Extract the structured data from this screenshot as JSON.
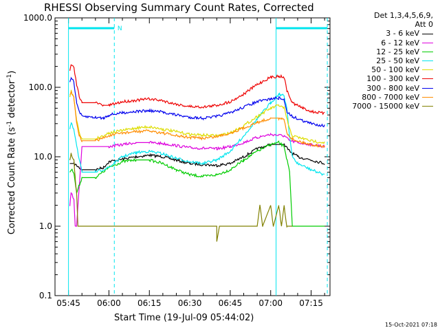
{
  "chart_data": {
    "type": "line",
    "title": "RHESSI Observing Summary Count Rates, Corrected",
    "xlabel": "Start Time (19-Jul-09 05:44:02)",
    "ylabel_parts": {
      "main": "Corrected Count Rate (s",
      "sup": "-1",
      "tail": " detector",
      "sup2": "-1",
      "end": ")"
    },
    "yscale": "log",
    "ylim": [
      0.1,
      1000.0
    ],
    "xlim": [
      "05:40",
      "07:22"
    ],
    "xticks": [
      "05:45",
      "06:00",
      "06:15",
      "06:30",
      "06:45",
      "07:00",
      "07:15"
    ],
    "yticks": [
      "0.1",
      "1.0",
      "10.0",
      "100.0",
      "1000.0"
    ],
    "legend_header": [
      "Det 1,3,4,5,6,9,",
      "Att 0"
    ],
    "legend_placement": "right",
    "markers": {
      "night_label": "N",
      "night_intervals": [
        [
          "05:45",
          "06:02"
        ],
        [
          "07:02",
          "07:21"
        ]
      ],
      "vertical_lines_solid": [
        "05:45",
        "07:02"
      ],
      "vertical_lines_dashed": [
        "06:02",
        "07:21"
      ]
    },
    "series": [
      {
        "name": "3 - 6 keV",
        "color": "#000000",
        "points": [
          [
            "05:45.5",
            8
          ],
          [
            "05:47",
            8
          ],
          [
            "05:50",
            6.5
          ],
          [
            "05:55",
            6.5
          ],
          [
            "05:58",
            7
          ],
          [
            "06:00",
            8.5
          ],
          [
            "06:10",
            10
          ],
          [
            "06:15",
            10.5
          ],
          [
            "06:20",
            10
          ],
          [
            "06:30",
            8
          ],
          [
            "06:40",
            7.5
          ],
          [
            "06:45",
            8
          ],
          [
            "06:50",
            10
          ],
          [
            "06:55",
            13
          ],
          [
            "07:00",
            15
          ],
          [
            "07:05",
            15
          ],
          [
            "07:07",
            12
          ],
          [
            "07:10",
            10
          ],
          [
            "07:15",
            9
          ],
          [
            "07:20",
            8
          ]
        ]
      },
      {
        "name": "6 - 12 keV",
        "color": "#dd00dd",
        "points": [
          [
            "05:45.5",
            2
          ],
          [
            "05:46",
            3
          ],
          [
            "05:47",
            2.5
          ],
          [
            "05:47.5",
            1
          ],
          [
            "05:48",
            1
          ],
          [
            "05:50",
            14
          ],
          [
            "05:55",
            14
          ],
          [
            "06:00",
            14
          ],
          [
            "06:10",
            16
          ],
          [
            "06:15",
            16
          ],
          [
            "06:20",
            15.5
          ],
          [
            "06:30",
            13.5
          ],
          [
            "06:40",
            13
          ],
          [
            "06:45",
            14
          ],
          [
            "06:50",
            16
          ],
          [
            "06:55",
            19
          ],
          [
            "07:00",
            21
          ],
          [
            "07:05",
            20
          ],
          [
            "07:07",
            17
          ],
          [
            "07:10",
            16
          ],
          [
            "07:15",
            15
          ],
          [
            "07:20",
            14
          ]
        ]
      },
      {
        "name": "12 - 25 keV",
        "color": "#00cc00",
        "points": [
          [
            "05:45.5",
            6
          ],
          [
            "05:46",
            6.5
          ],
          [
            "05:47",
            6
          ],
          [
            "05:48",
            3
          ],
          [
            "05:50",
            5
          ],
          [
            "05:55",
            5
          ],
          [
            "06:00",
            7
          ],
          [
            "06:05",
            8.5
          ],
          [
            "06:10",
            9
          ],
          [
            "06:15",
            9
          ],
          [
            "06:20",
            8
          ],
          [
            "06:25",
            6.5
          ],
          [
            "06:30",
            5.5
          ],
          [
            "06:35",
            5.2
          ],
          [
            "06:40",
            5.5
          ],
          [
            "06:45",
            6.5
          ],
          [
            "06:50",
            9
          ],
          [
            "06:55",
            12
          ],
          [
            "07:00",
            15
          ],
          [
            "07:03",
            16
          ],
          [
            "07:05",
            14
          ],
          [
            "07:07",
            6
          ],
          [
            "07:08",
            1
          ],
          [
            "07:20",
            1
          ]
        ]
      },
      {
        "name": "25 - 50 keV",
        "color": "#00e5ee",
        "points": [
          [
            "05:45.5",
            25
          ],
          [
            "05:46",
            30
          ],
          [
            "05:47",
            25
          ],
          [
            "05:48",
            15
          ],
          [
            "05:49",
            9
          ],
          [
            "05:50",
            6
          ],
          [
            "05:55",
            6
          ],
          [
            "06:00",
            7
          ],
          [
            "06:05",
            10
          ],
          [
            "06:10",
            11.5
          ],
          [
            "06:15",
            12
          ],
          [
            "06:20",
            11
          ],
          [
            "06:25",
            9.5
          ],
          [
            "06:30",
            8.5
          ],
          [
            "06:35",
            8
          ],
          [
            "06:40",
            9
          ],
          [
            "06:45",
            12
          ],
          [
            "06:50",
            20
          ],
          [
            "06:55",
            35
          ],
          [
            "07:00",
            60
          ],
          [
            "07:03",
            80
          ],
          [
            "07:05",
            75
          ],
          [
            "07:06",
            50
          ],
          [
            "07:07",
            20
          ],
          [
            "07:08",
            10
          ],
          [
            "07:10",
            8
          ],
          [
            "07:15",
            6.5
          ],
          [
            "07:20",
            5.5
          ]
        ]
      },
      {
        "name": "50 - 100 keV",
        "color": "#dddd00",
        "points": [
          [
            "05:45.5",
            70
          ],
          [
            "05:46",
            90
          ],
          [
            "05:47",
            70
          ],
          [
            "05:48",
            35
          ],
          [
            "05:49",
            22
          ],
          [
            "05:50",
            18
          ],
          [
            "05:55",
            18
          ],
          [
            "06:00",
            22
          ],
          [
            "06:10",
            26
          ],
          [
            "06:15",
            27
          ],
          [
            "06:20",
            25
          ],
          [
            "06:30",
            21
          ],
          [
            "06:40",
            20
          ],
          [
            "06:45",
            22
          ],
          [
            "06:50",
            28
          ],
          [
            "06:55",
            38
          ],
          [
            "07:00",
            50
          ],
          [
            "07:03",
            55
          ],
          [
            "07:05",
            50
          ],
          [
            "07:07",
            25
          ],
          [
            "07:08",
            20
          ],
          [
            "07:15",
            17
          ],
          [
            "07:20",
            16
          ]
        ]
      },
      {
        "name": "100 - 300 keV",
        "color": "#ee0000",
        "points": [
          [
            "05:45.5",
            170
          ],
          [
            "05:46",
            210
          ],
          [
            "05:47",
            190
          ],
          [
            "05:48",
            110
          ],
          [
            "05:49",
            75
          ],
          [
            "05:50",
            60
          ],
          [
            "05:55",
            60
          ],
          [
            "05:58",
            55
          ],
          [
            "06:00",
            55
          ],
          [
            "06:05",
            62
          ],
          [
            "06:10",
            65
          ],
          [
            "06:15",
            68
          ],
          [
            "06:20",
            64
          ],
          [
            "06:25",
            57
          ],
          [
            "06:30",
            53
          ],
          [
            "06:35",
            52
          ],
          [
            "06:40",
            55
          ],
          [
            "06:45",
            62
          ],
          [
            "06:50",
            80
          ],
          [
            "06:55",
            110
          ],
          [
            "07:00",
            140
          ],
          [
            "07:03",
            145
          ],
          [
            "07:05",
            140
          ],
          [
            "07:06",
            90
          ],
          [
            "07:08",
            60
          ],
          [
            "07:12",
            50
          ],
          [
            "07:15",
            45
          ],
          [
            "07:20",
            42
          ]
        ]
      },
      {
        "name": "300 - 800 keV",
        "color": "#0000ee",
        "points": [
          [
            "05:45.5",
            120
          ],
          [
            "05:46",
            140
          ],
          [
            "05:47",
            120
          ],
          [
            "05:48",
            60
          ],
          [
            "05:49",
            45
          ],
          [
            "05:50",
            38
          ],
          [
            "05:55",
            37
          ],
          [
            "05:58",
            36
          ],
          [
            "06:00",
            40
          ],
          [
            "06:05",
            43
          ],
          [
            "06:10",
            45
          ],
          [
            "06:15",
            46
          ],
          [
            "06:20",
            44
          ],
          [
            "06:25",
            40
          ],
          [
            "06:30",
            37
          ],
          [
            "06:35",
            36
          ],
          [
            "06:40",
            38
          ],
          [
            "06:45",
            43
          ],
          [
            "06:50",
            52
          ],
          [
            "06:55",
            62
          ],
          [
            "07:00",
            68
          ],
          [
            "07:03",
            70
          ],
          [
            "07:05",
            66
          ],
          [
            "07:06",
            45
          ],
          [
            "07:08",
            38
          ],
          [
            "07:12",
            33
          ],
          [
            "07:15",
            30
          ],
          [
            "07:20",
            28
          ]
        ]
      },
      {
        "name": "800 - 7000 keV",
        "color": "#ff8c00",
        "points": [
          [
            "05:45.5",
            80
          ],
          [
            "05:46",
            85
          ],
          [
            "05:47",
            70
          ],
          [
            "05:48",
            30
          ],
          [
            "05:49",
            20
          ],
          [
            "05:50",
            17
          ],
          [
            "05:55",
            17
          ],
          [
            "06:00",
            20
          ],
          [
            "06:05",
            22
          ],
          [
            "06:10",
            23
          ],
          [
            "06:15",
            23.5
          ],
          [
            "06:20",
            22
          ],
          [
            "06:25",
            20
          ],
          [
            "06:30",
            19
          ],
          [
            "06:35",
            18.5
          ],
          [
            "06:40",
            19.5
          ],
          [
            "06:45",
            22
          ],
          [
            "06:50",
            26
          ],
          [
            "06:55",
            31
          ],
          [
            "07:00",
            36
          ],
          [
            "07:03",
            36
          ],
          [
            "07:05",
            34
          ],
          [
            "07:06",
            22
          ],
          [
            "07:08",
            18
          ],
          [
            "07:12",
            16
          ],
          [
            "07:15",
            15
          ],
          [
            "07:20",
            14
          ]
        ]
      },
      {
        "name": "7000 - 15000 keV",
        "color": "#808000",
        "points": [
          [
            "05:45.5",
            9
          ],
          [
            "05:46",
            11
          ],
          [
            "05:47",
            9
          ],
          [
            "05:47.5",
            5
          ],
          [
            "05:48",
            3
          ],
          [
            "05:48.5",
            1
          ],
          [
            "05:49",
            1
          ],
          [
            "06:40",
            1
          ],
          [
            "06:40",
            0.6
          ],
          [
            "06:41",
            1
          ],
          [
            "06:55",
            1
          ],
          [
            "06:56",
            2
          ],
          [
            "06:57",
            1
          ],
          [
            "07:00",
            2
          ],
          [
            "07:01",
            1
          ],
          [
            "07:03",
            2
          ],
          [
            "07:04",
            1
          ],
          [
            "07:05",
            2
          ],
          [
            "07:06",
            1
          ],
          [
            "07:08",
            1
          ]
        ]
      }
    ]
  },
  "footer": {
    "stamp": "15-Oct-2021 07:18"
  }
}
